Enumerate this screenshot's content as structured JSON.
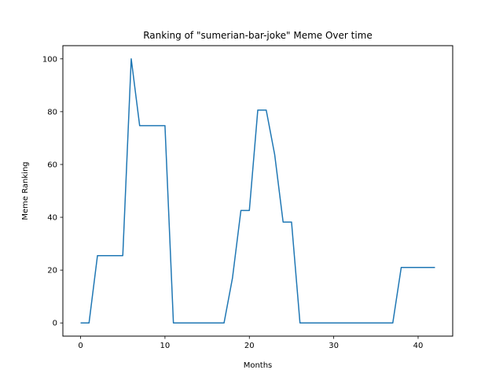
{
  "chart_data": {
    "type": "line",
    "title": "Ranking of \"sumerian-bar-joke\" Meme Over time",
    "xlabel": "Months",
    "ylabel": "Meme Ranking",
    "xlim": [
      -2.1,
      44.1
    ],
    "ylim": [
      -5,
      105
    ],
    "xticks": [
      0,
      10,
      20,
      30,
      40
    ],
    "yticks": [
      0,
      20,
      40,
      60,
      80,
      100
    ],
    "grid": false,
    "series": [
      {
        "color": "#1f77b4",
        "x": [
          0,
          1,
          2,
          3,
          4,
          5,
          6,
          7,
          8,
          9,
          10,
          11,
          12,
          13,
          14,
          15,
          16,
          17,
          18,
          19,
          20,
          21,
          22,
          23,
          24,
          25,
          26,
          27,
          28,
          29,
          30,
          31,
          32,
          33,
          34,
          35,
          36,
          37,
          38,
          39,
          40,
          41,
          42
        ],
        "values": [
          0,
          0,
          25.5,
          25.5,
          25.5,
          25.5,
          100,
          74.7,
          74.7,
          74.7,
          74.7,
          0,
          0,
          0,
          0,
          0,
          0,
          0,
          17,
          42.6,
          42.6,
          80.6,
          80.6,
          63.8,
          38.2,
          38.2,
          0,
          0,
          0,
          0,
          0,
          0,
          0,
          0,
          0,
          0,
          0,
          0,
          21,
          21,
          21,
          21,
          21
        ]
      }
    ]
  }
}
